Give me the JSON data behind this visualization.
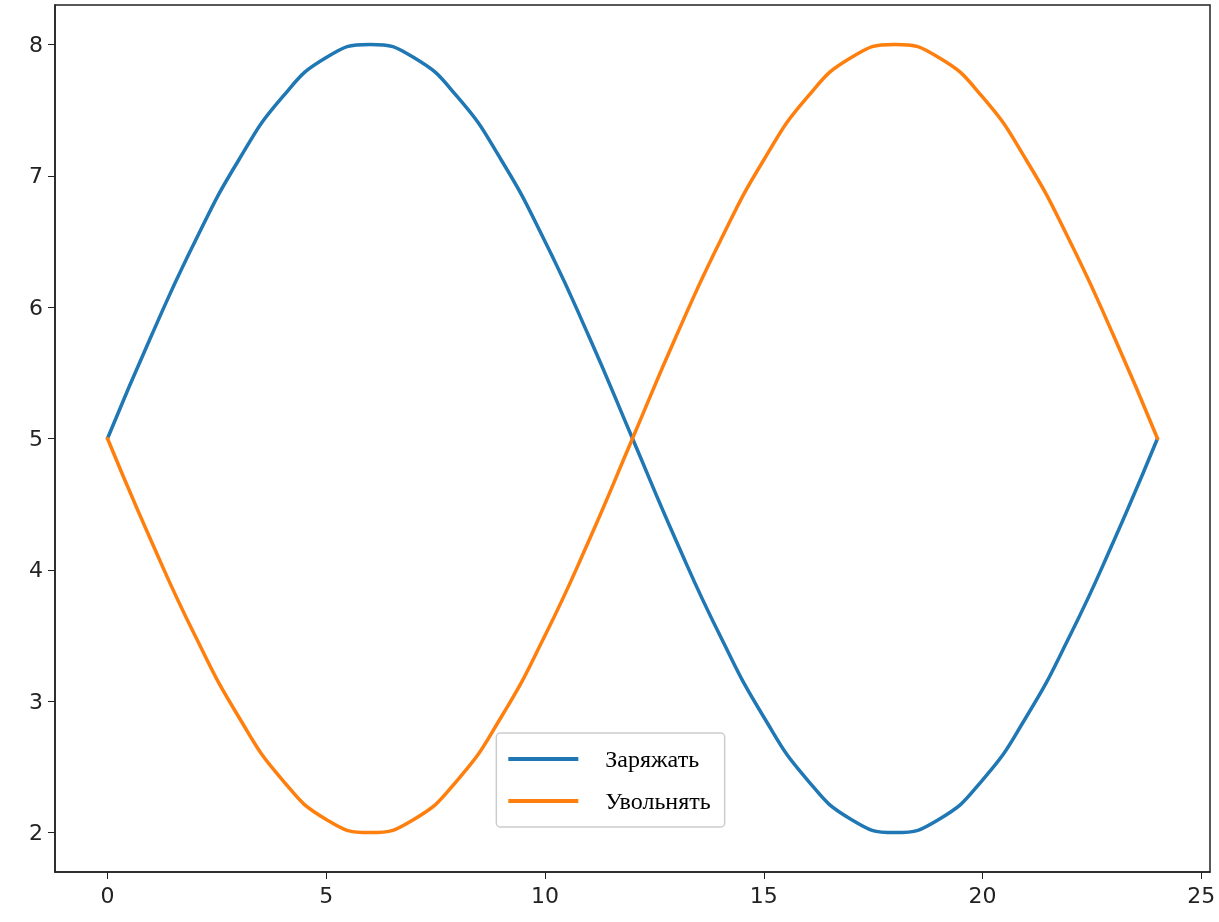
{
  "chart_data": {
    "type": "line",
    "x": [
      0,
      1,
      2,
      3,
      4,
      5,
      6,
      7,
      8,
      9,
      10,
      11,
      12,
      13,
      14,
      15,
      16,
      17,
      18,
      19,
      20,
      21,
      22,
      23,
      24
    ],
    "series": [
      {
        "name": "Заряжать",
        "color": "#1f77b4",
        "values": [
          5,
          5.78,
          6.5,
          7.12,
          7.6,
          7.9,
          8,
          7.9,
          7.6,
          7.12,
          6.5,
          5.78,
          5,
          4.22,
          3.5,
          2.88,
          2.4,
          2.1,
          2,
          2.1,
          2.4,
          2.88,
          3.5,
          4.22,
          5
        ]
      },
      {
        "name": "Увольнять",
        "color": "#ff7f0e",
        "values": [
          5,
          4.22,
          3.5,
          2.88,
          2.4,
          2.1,
          2,
          2.1,
          2.4,
          2.88,
          3.5,
          4.22,
          5,
          5.78,
          6.5,
          7.12,
          7.6,
          7.9,
          8,
          7.9,
          7.6,
          7.12,
          6.5,
          5.78,
          5
        ]
      }
    ],
    "xlim": [
      -1.2,
      25.2
    ],
    "xticks": [
      0,
      5,
      10,
      15,
      20,
      25
    ],
    "ylim": [
      1.7,
      8.3
    ],
    "yticks": [
      2,
      3,
      4,
      5,
      6,
      7,
      8
    ],
    "grid": false,
    "legend": "bottom",
    "marker": "none",
    "line_style": "solid"
  }
}
